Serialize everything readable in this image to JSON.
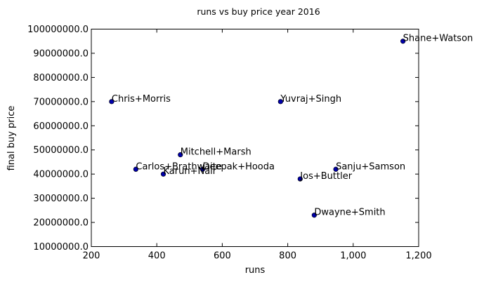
{
  "chart_data": {
    "type": "scatter",
    "title": "runs vs buy price year 2016",
    "xlabel": "runs",
    "ylabel": "final buy price",
    "xlim": [
      200,
      1200
    ],
    "ylim": [
      10000000,
      100000000
    ],
    "xticks": [
      200,
      400,
      600,
      800,
      1000,
      1200
    ],
    "xtick_labels": [
      "200",
      "400",
      "600",
      "800",
      "1,000",
      "1,200"
    ],
    "yticks": [
      10000000,
      20000000,
      30000000,
      40000000,
      50000000,
      60000000,
      70000000,
      80000000,
      90000000,
      100000000
    ],
    "ytick_labels": [
      "10000000.0",
      "20000000.0",
      "30000000.0",
      "40000000.0",
      "50000000.0",
      "60000000.0",
      "70000000.0",
      "80000000.0",
      "90000000.0",
      "100000000.0"
    ],
    "grid": false,
    "marker_color": "#0000aa",
    "points": [
      {
        "label": "Shane+Watson",
        "x": 1152,
        "y": 95000000
      },
      {
        "label": "Chris+Morris",
        "x": 262,
        "y": 70000000
      },
      {
        "label": "Yuvraj+Singh",
        "x": 778,
        "y": 70000000
      },
      {
        "label": "Mitchell+Marsh",
        "x": 472,
        "y": 48000000
      },
      {
        "label": "Carlos+Brathwaite",
        "x": 336,
        "y": 42000000
      },
      {
        "label": "Karun+Nair",
        "x": 420,
        "y": 40000000
      },
      {
        "label": "Deepak+Hooda",
        "x": 540,
        "y": 42000000
      },
      {
        "label": "Sanju+Samson",
        "x": 947,
        "y": 42000000
      },
      {
        "label": "Jos+Buttler",
        "x": 838,
        "y": 38000000
      },
      {
        "label": "Dwayne+Smith",
        "x": 881,
        "y": 23000000
      }
    ]
  }
}
